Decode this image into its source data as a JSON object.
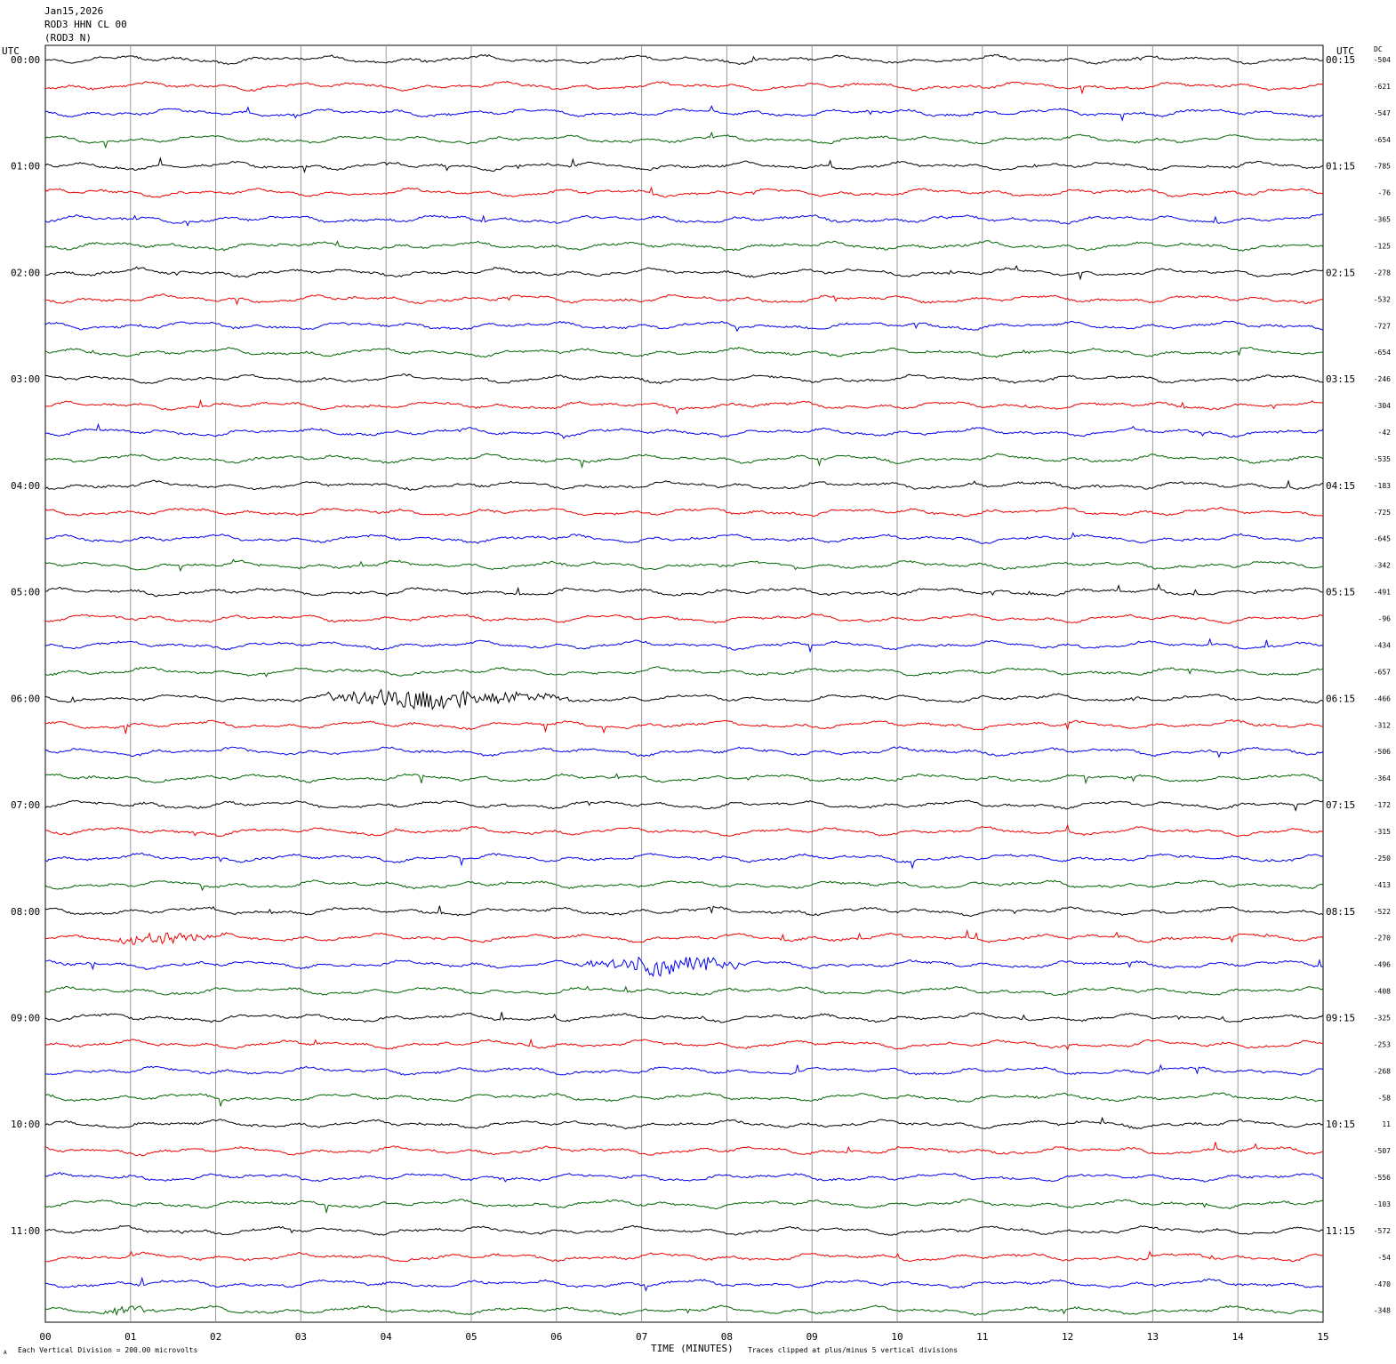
{
  "header": {
    "date": "Jan15,2026",
    "channel": "ROD3 HHN CL 00",
    "station": "(ROD3 N)"
  },
  "left_label": "UTC",
  "right_label": "UTC",
  "dc_label": "DC",
  "footer": {
    "xlabel": "TIME (MINUTES)",
    "scale_note": "Each Vertical Division =  200.00 microvolts",
    "clip_note": "Traces clipped at plus/minus 5 vertical divisions",
    "corner_mark": "A"
  },
  "colors": {
    "trace_cycle": [
      "#000000",
      "#ee0000",
      "#0000ee",
      "#006400"
    ],
    "grid": "#999999"
  },
  "chart_data": {
    "type": "line",
    "title": "",
    "xlabel": "TIME (MINUTES)",
    "ylabel": "",
    "xlim": [
      0,
      15
    ],
    "x_ticks": [
      "00",
      "01",
      "02",
      "03",
      "04",
      "05",
      "06",
      "07",
      "08",
      "09",
      "10",
      "11",
      "12",
      "13",
      "14",
      "15"
    ],
    "row_count": 48,
    "left_hour_labels": [
      "00:00",
      "01:00",
      "02:00",
      "03:00",
      "04:00",
      "05:00",
      "06:00",
      "07:00",
      "08:00",
      "09:00",
      "10:00",
      "11:00"
    ],
    "right_hour_labels": [
      "00:15",
      "01:15",
      "02:15",
      "03:15",
      "04:15",
      "05:15",
      "06:15",
      "07:15",
      "08:15",
      "09:15",
      "10:15",
      "11:15"
    ],
    "dc_offsets": [
      "-504",
      "-621",
      "-547",
      "-654",
      "-785",
      "-76",
      "-365",
      "-125",
      "-278",
      "-532",
      "-727",
      "-654",
      "-246",
      "-304",
      "-42",
      "-535",
      "-183",
      "-725",
      "-645",
      "-342",
      "-491",
      "-96",
      "-434",
      "-657",
      "-466",
      "-312",
      "-506",
      "-364",
      "-172",
      "-315",
      "-250",
      "-413",
      "-522",
      "-270",
      "-496",
      "-408",
      "-325",
      "-253",
      "-268",
      "-58",
      "11",
      "-507",
      "-556",
      "-103",
      "-572",
      "-54",
      "-470",
      "-348"
    ],
    "events": [
      {
        "row": 24,
        "start_min": 3.0,
        "end_min": 6.5,
        "peak_min": 4.3,
        "amplitude": 0.9,
        "label": ""
      },
      {
        "row": 34,
        "start_min": 6.1,
        "end_min": 8.5,
        "peak_min": 7.4,
        "amplitude": 0.8,
        "label": ""
      },
      {
        "row": 33,
        "start_min": 0.6,
        "end_min": 2.2,
        "peak_min": 1.4,
        "amplitude": 0.55,
        "label": ""
      },
      {
        "row": 47,
        "start_min": 0.6,
        "end_min": 1.3,
        "peak_min": 0.8,
        "amplitude": 0.6,
        "label": ""
      }
    ]
  }
}
